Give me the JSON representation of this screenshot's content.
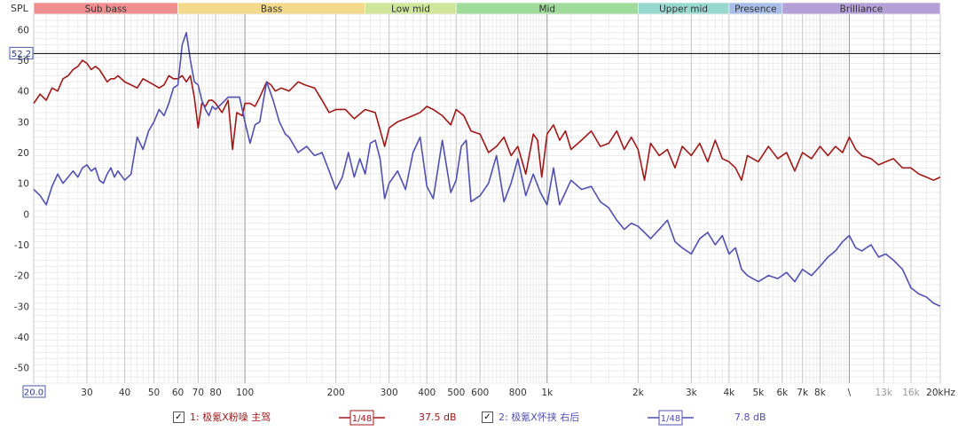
{
  "chart_data": {
    "type": "line",
    "ylabel": "SPL",
    "xscale": "log",
    "xlim": [
      20,
      20000
    ],
    "ylim": [
      -55,
      65
    ],
    "x_ticks": [
      {
        "v": 20,
        "label": "20.0"
      },
      {
        "v": 30,
        "label": "30"
      },
      {
        "v": 40,
        "label": "40"
      },
      {
        "v": 50,
        "label": "50"
      },
      {
        "v": 60,
        "label": "60"
      },
      {
        "v": 70,
        "label": "70"
      },
      {
        "v": 80,
        "label": "80"
      },
      {
        "v": 100,
        "label": "100"
      },
      {
        "v": 200,
        "label": "200"
      },
      {
        "v": 300,
        "label": "300"
      },
      {
        "v": 400,
        "label": "400"
      },
      {
        "v": 500,
        "label": "500"
      },
      {
        "v": 600,
        "label": "600"
      },
      {
        "v": 800,
        "label": "800"
      },
      {
        "v": 1000,
        "label": "1k"
      },
      {
        "v": 2000,
        "label": "2k"
      },
      {
        "v": 3000,
        "label": "3k"
      },
      {
        "v": 4000,
        "label": "4k"
      },
      {
        "v": 5000,
        "label": "5k"
      },
      {
        "v": 6000,
        "label": "6k"
      },
      {
        "v": 7000,
        "label": "7k"
      },
      {
        "v": 8000,
        "label": "8k"
      },
      {
        "v": 10000,
        "label": "\\"
      },
      {
        "v": 13000,
        "label": "13k"
      },
      {
        "v": 16000,
        "label": "16k"
      },
      {
        "v": 20000,
        "label": "20kHz"
      }
    ],
    "y_ticks": [
      60,
      50,
      40,
      30,
      20,
      10,
      0,
      -10,
      -20,
      -30,
      -40,
      -50
    ],
    "bands": [
      {
        "label": "Sub bass",
        "from": 20,
        "to": 60,
        "color": "#ef8f8f"
      },
      {
        "label": "Bass",
        "from": 60,
        "to": 250,
        "color": "#f3d98c"
      },
      {
        "label": "Low mid",
        "from": 250,
        "to": 500,
        "color": "#cfe69a"
      },
      {
        "label": "Mid",
        "from": 500,
        "to": 2000,
        "color": "#9fdc9c"
      },
      {
        "label": "Upper mid",
        "from": 2000,
        "to": 4000,
        "color": "#98d9cf"
      },
      {
        "label": "Presence",
        "from": 4000,
        "to": 6000,
        "color": "#a8bde8"
      },
      {
        "label": "Brilliance",
        "from": 6000,
        "to": 20000,
        "color": "#b3a0d6"
      }
    ],
    "reference_line": {
      "value": 52.2,
      "label": "52.2"
    },
    "series": [
      {
        "name": "1: 极氪X粉噪 主驾",
        "color": "#a01818",
        "smoothing": "1/48",
        "offset_label": "37.5 dB",
        "points": [
          [
            20,
            36
          ],
          [
            21,
            39
          ],
          [
            22,
            37
          ],
          [
            23,
            41
          ],
          [
            24,
            40
          ],
          [
            25,
            44
          ],
          [
            26,
            45
          ],
          [
            27,
            47
          ],
          [
            28,
            48
          ],
          [
            29,
            50
          ],
          [
            30,
            49
          ],
          [
            31,
            47
          ],
          [
            32,
            48
          ],
          [
            33,
            47
          ],
          [
            34,
            45
          ],
          [
            35,
            43
          ],
          [
            36,
            44
          ],
          [
            37,
            44
          ],
          [
            38,
            45
          ],
          [
            40,
            43
          ],
          [
            42,
            42
          ],
          [
            44,
            41
          ],
          [
            46,
            44
          ],
          [
            48,
            43
          ],
          [
            50,
            42
          ],
          [
            52,
            41
          ],
          [
            54,
            42
          ],
          [
            56,
            45
          ],
          [
            58,
            44
          ],
          [
            60,
            44
          ],
          [
            62,
            45
          ],
          [
            64,
            43
          ],
          [
            66,
            45
          ],
          [
            68,
            38
          ],
          [
            70,
            28
          ],
          [
            72,
            36
          ],
          [
            74,
            35
          ],
          [
            76,
            37
          ],
          [
            78,
            37
          ],
          [
            80,
            36
          ],
          [
            84,
            33
          ],
          [
            88,
            37
          ],
          [
            91,
            21
          ],
          [
            94,
            33
          ],
          [
            98,
            32
          ],
          [
            100,
            36
          ],
          [
            104,
            36
          ],
          [
            108,
            35
          ],
          [
            112,
            38
          ],
          [
            118,
            43
          ],
          [
            122,
            42
          ],
          [
            126,
            40
          ],
          [
            132,
            41
          ],
          [
            140,
            40
          ],
          [
            150,
            43
          ],
          [
            158,
            42
          ],
          [
            170,
            41
          ],
          [
            180,
            37
          ],
          [
            190,
            33
          ],
          [
            200,
            34
          ],
          [
            215,
            34
          ],
          [
            230,
            31
          ],
          [
            250,
            34
          ],
          [
            270,
            33
          ],
          [
            290,
            22
          ],
          [
            300,
            28
          ],
          [
            320,
            30
          ],
          [
            340,
            31
          ],
          [
            360,
            32
          ],
          [
            380,
            33
          ],
          [
            400,
            35
          ],
          [
            420,
            34
          ],
          [
            450,
            32
          ],
          [
            480,
            29
          ],
          [
            500,
            34
          ],
          [
            530,
            32
          ],
          [
            560,
            27
          ],
          [
            600,
            26
          ],
          [
            640,
            20
          ],
          [
            680,
            22
          ],
          [
            720,
            25
          ],
          [
            760,
            19
          ],
          [
            800,
            22
          ],
          [
            850,
            13
          ],
          [
            900,
            26
          ],
          [
            930,
            24
          ],
          [
            960,
            12
          ],
          [
            1000,
            26
          ],
          [
            1050,
            29
          ],
          [
            1100,
            24
          ],
          [
            1150,
            27
          ],
          [
            1200,
            21
          ],
          [
            1300,
            24
          ],
          [
            1400,
            27
          ],
          [
            1500,
            22
          ],
          [
            1600,
            23
          ],
          [
            1700,
            27
          ],
          [
            1800,
            21
          ],
          [
            1900,
            25
          ],
          [
            2000,
            21
          ],
          [
            2100,
            11
          ],
          [
            2200,
            23
          ],
          [
            2350,
            19
          ],
          [
            2500,
            21
          ],
          [
            2650,
            15
          ],
          [
            2800,
            22
          ],
          [
            3000,
            19
          ],
          [
            3200,
            23
          ],
          [
            3400,
            17
          ],
          [
            3600,
            24
          ],
          [
            3800,
            18
          ],
          [
            4000,
            17
          ],
          [
            4200,
            15
          ],
          [
            4400,
            11
          ],
          [
            4600,
            19
          ],
          [
            5000,
            17
          ],
          [
            5400,
            22
          ],
          [
            5800,
            18
          ],
          [
            6200,
            20
          ],
          [
            6600,
            14
          ],
          [
            7000,
            20
          ],
          [
            7500,
            18
          ],
          [
            8000,
            22
          ],
          [
            8500,
            19
          ],
          [
            9000,
            22
          ],
          [
            9500,
            20
          ],
          [
            10000,
            25
          ],
          [
            10500,
            21
          ],
          [
            11000,
            19
          ],
          [
            11800,
            18
          ],
          [
            12500,
            16
          ],
          [
            13200,
            17
          ],
          [
            14000,
            18
          ],
          [
            15000,
            15
          ],
          [
            16000,
            15
          ],
          [
            17000,
            13
          ],
          [
            18000,
            12
          ],
          [
            19000,
            11
          ],
          [
            20000,
            12
          ]
        ]
      },
      {
        "name": "2: 极氪X怀挟 右后",
        "color": "#5050b0",
        "smoothing": "1/48",
        "offset_label": "7.8 dB",
        "points": [
          [
            20,
            8
          ],
          [
            21,
            6
          ],
          [
            22,
            3
          ],
          [
            23,
            9
          ],
          [
            24,
            13
          ],
          [
            25,
            10
          ],
          [
            26,
            12
          ],
          [
            27,
            14
          ],
          [
            28,
            12
          ],
          [
            29,
            15
          ],
          [
            30,
            16
          ],
          [
            31,
            14
          ],
          [
            32,
            15
          ],
          [
            33,
            11
          ],
          [
            34,
            10
          ],
          [
            35,
            13
          ],
          [
            36,
            15
          ],
          [
            37,
            12
          ],
          [
            38,
            14
          ],
          [
            40,
            11
          ],
          [
            42,
            13
          ],
          [
            44,
            25
          ],
          [
            46,
            21
          ],
          [
            48,
            27
          ],
          [
            50,
            30
          ],
          [
            52,
            34
          ],
          [
            54,
            32
          ],
          [
            56,
            36
          ],
          [
            58,
            41
          ],
          [
            60,
            42
          ],
          [
            62,
            55
          ],
          [
            64,
            59
          ],
          [
            66,
            50
          ],
          [
            68,
            43
          ],
          [
            70,
            42
          ],
          [
            72,
            37
          ],
          [
            74,
            34
          ],
          [
            76,
            32
          ],
          [
            78,
            35
          ],
          [
            80,
            34
          ],
          [
            84,
            36
          ],
          [
            88,
            38
          ],
          [
            92,
            38
          ],
          [
            96,
            38
          ],
          [
            100,
            30
          ],
          [
            104,
            23
          ],
          [
            108,
            29
          ],
          [
            112,
            30
          ],
          [
            118,
            43
          ],
          [
            124,
            37
          ],
          [
            130,
            30
          ],
          [
            136,
            26
          ],
          [
            140,
            25
          ],
          [
            150,
            20
          ],
          [
            160,
            22
          ],
          [
            170,
            19
          ],
          [
            180,
            20
          ],
          [
            190,
            14
          ],
          [
            200,
            8
          ],
          [
            210,
            12
          ],
          [
            220,
            20
          ],
          [
            230,
            12
          ],
          [
            240,
            18
          ],
          [
            250,
            13
          ],
          [
            260,
            23
          ],
          [
            270,
            24
          ],
          [
            280,
            18
          ],
          [
            290,
            5
          ],
          [
            300,
            10
          ],
          [
            320,
            14
          ],
          [
            340,
            8
          ],
          [
            360,
            20
          ],
          [
            380,
            25
          ],
          [
            400,
            9
          ],
          [
            420,
            5
          ],
          [
            450,
            24
          ],
          [
            480,
            7
          ],
          [
            500,
            11
          ],
          [
            520,
            22
          ],
          [
            540,
            24
          ],
          [
            560,
            4
          ],
          [
            600,
            6
          ],
          [
            640,
            10
          ],
          [
            680,
            19
          ],
          [
            720,
            4
          ],
          [
            760,
            10
          ],
          [
            800,
            18
          ],
          [
            850,
            6
          ],
          [
            900,
            13
          ],
          [
            950,
            7
          ],
          [
            1000,
            3
          ],
          [
            1050,
            15
          ],
          [
            1100,
            3
          ],
          [
            1200,
            11
          ],
          [
            1300,
            8
          ],
          [
            1400,
            9
          ],
          [
            1500,
            4
          ],
          [
            1600,
            2
          ],
          [
            1700,
            -2
          ],
          [
            1800,
            -5
          ],
          [
            1900,
            -3
          ],
          [
            2000,
            -4
          ],
          [
            2100,
            -6
          ],
          [
            2200,
            -8
          ],
          [
            2350,
            -5
          ],
          [
            2500,
            -2
          ],
          [
            2650,
            -9
          ],
          [
            2800,
            -11
          ],
          [
            3000,
            -13
          ],
          [
            3200,
            -8
          ],
          [
            3400,
            -6
          ],
          [
            3600,
            -10
          ],
          [
            3800,
            -7
          ],
          [
            4000,
            -13
          ],
          [
            4200,
            -11
          ],
          [
            4400,
            -18
          ],
          [
            4600,
            -20
          ],
          [
            5000,
            -22
          ],
          [
            5400,
            -20
          ],
          [
            5800,
            -21
          ],
          [
            6200,
            -19
          ],
          [
            6600,
            -22
          ],
          [
            7000,
            -18
          ],
          [
            7500,
            -20
          ],
          [
            8000,
            -17
          ],
          [
            8500,
            -14
          ],
          [
            9000,
            -12
          ],
          [
            9500,
            -9
          ],
          [
            10000,
            -7
          ],
          [
            10500,
            -11
          ],
          [
            11000,
            -12
          ],
          [
            11800,
            -10
          ],
          [
            12500,
            -14
          ],
          [
            13200,
            -13
          ],
          [
            14000,
            -15
          ],
          [
            15000,
            -18
          ],
          [
            16000,
            -24
          ],
          [
            17000,
            -26
          ],
          [
            18000,
            -27
          ],
          [
            19000,
            -29
          ],
          [
            20000,
            -30
          ]
        ]
      }
    ]
  },
  "legend": {
    "items": [
      {
        "label": "1: 极氪X粉噪 主驾",
        "checked": true,
        "smoothing": "1/48",
        "value": "37.5 dB",
        "color": "#a01818"
      },
      {
        "label": "2: 极氪X怀挟 右后",
        "checked": true,
        "smoothing": "1/48",
        "value": "7.8 dB",
        "color": "#5050b0"
      }
    ]
  }
}
